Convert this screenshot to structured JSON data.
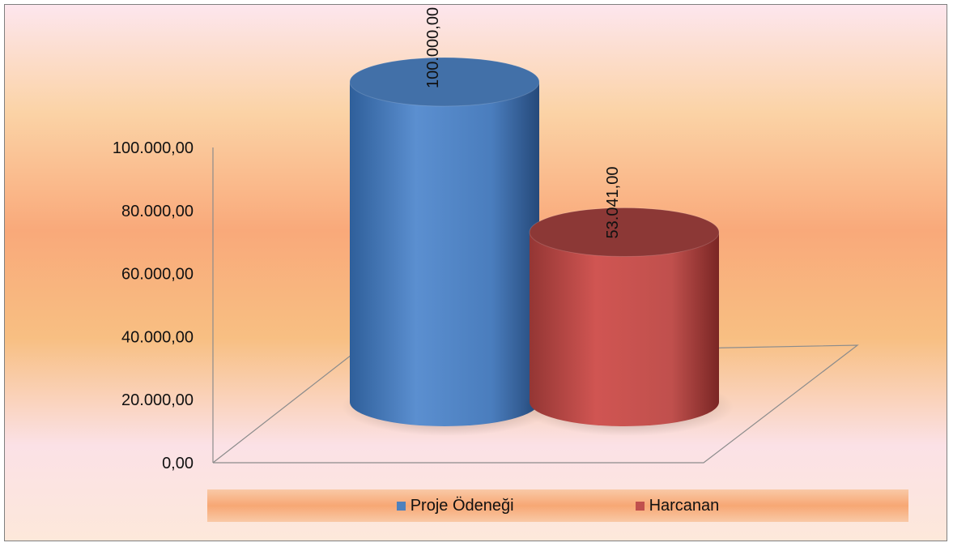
{
  "chart_data": {
    "type": "bar",
    "subtype": "3d-cylinder",
    "categories": [
      "Proje Ödeneği",
      "Harcanan"
    ],
    "values": [
      100000,
      53041
    ],
    "value_labels": [
      "100.000,00",
      "53.041,00"
    ],
    "colors": [
      "#4f81bd",
      "#c0504d"
    ],
    "ylim": [
      0,
      100000
    ],
    "yticks": [
      0,
      20000,
      40000,
      60000,
      80000,
      100000
    ],
    "ytick_labels": [
      "0,00",
      "20.000,00",
      "40.000,00",
      "60.000,00",
      "80.000,00",
      "100.000,00"
    ],
    "grid": false,
    "legend": "bottom",
    "title": "",
    "xlabel": "",
    "ylabel": ""
  },
  "legend": {
    "items": [
      {
        "label": "Proje Ödeneği",
        "color": "#4f81bd"
      },
      {
        "label": "Harcanan",
        "color": "#c0504d"
      }
    ]
  }
}
